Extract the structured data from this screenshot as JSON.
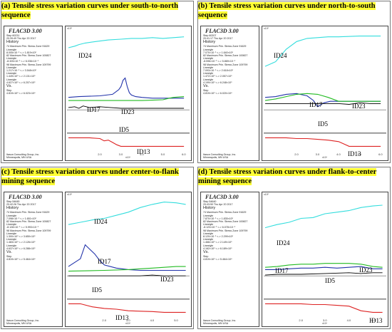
{
  "panels": [
    {
      "caption": "(a) Tensile stress variation curves under south-to-north sequence",
      "software": "FLAC3D 3.00",
      "step": "Step 60231",
      "timestamp": "20:39:49 Thu Apr 20 2017",
      "history_lines": [
        "74 Maximum Prin. Stress Zone 91629",
        "Linestyle",
        "8.005×10⁻¹ <-> 1.819×10⁰",
        "82 Maximum Prin. Stress Zone 100827",
        "Linestyle",
        "-8.325×10⁻¹ <-> 6.036×10⁻¹",
        "98 Maximum Prin. Stress Zone 109799",
        "Linestyle",
        "1.217×10⁻¹ <-> 3.548×10⁰",
        "Linestyle",
        "1.449×10⁰ <-> 2.131×10⁰",
        "Linestyle",
        "4.627×10⁰ <-> 6.207×10⁰"
      ],
      "vs_lines": [
        "Step",
        "4.819×10⁰ <-> 6.023×10⁴"
      ],
      "x_exp": "x10⁴",
      "y_exp": "x10⁰",
      "xticks": [
        "2.0",
        "3.0",
        "4.0",
        "5.0",
        "6.0"
      ]
    },
    {
      "caption": "(b) Tensile stress variation curves under north-to-south sequence",
      "software": "FLAC3D 3.00",
      "step": "Step 60207",
      "timestamp": "20:41:17 Thu Apr 20 2017",
      "history_lines": [
        "74 Maximum Prin. Stress Zone 91629",
        "Linestyle",
        "7.070×10⁻¹ <-> 1.640×10⁰",
        "82 Maximum Prin. Stress Zone 100827",
        "Linestyle",
        "-8.596×10⁻¹ <-> 5.869×10⁻¹",
        "98 Maximum Prin. Stress Zone 109799",
        "Linestyle",
        "7.093×10⁻¹ <-> 2.618×10⁰",
        "Linestyle",
        "1.472×10⁰ <-> 2.057×10⁰",
        "Linestyle",
        "4.199×10⁰ <-> 6.248×10⁰"
      ],
      "vs_lines": [
        "Step",
        "4.819×10⁰ <-> 6.020×10⁴"
      ],
      "x_exp": "x10⁴",
      "y_exp": "x10⁰",
      "xticks": [
        "2.0",
        "3.0",
        "4.0",
        "5.0",
        "6.0"
      ]
    },
    {
      "caption": "(c) Tensile stress variation curves under center-to-flank mining sequence",
      "software": "FLAC3D 3.00",
      "step": "Step 54645",
      "timestamp": "20:42:26 Thu Apr 20 2017",
      "history_lines": [
        "74 Maximum Prin. Stress Zone 91629",
        "Linestyle",
        "7.098×10⁻¹ <-> 1.651×10⁰",
        "82 Maximum Prin. Stress Zone 100827",
        "Linestyle",
        "-8.128×10⁻¹ <-> 5.993×10⁻¹",
        "98 Maximum Prin. Stress Zone 109799",
        "Linestyle",
        "1.300×10⁰ <-> 3.650×10⁰",
        "Linestyle",
        "1.483×10⁰ <-> 2.126×10⁰",
        "Linestyle",
        "4.637×10⁰ <-> 6.288×10⁰"
      ],
      "vs_lines": [
        "Step",
        "4.819×10⁰ <-> 5.464×10⁴"
      ],
      "x_exp": "x10⁴",
      "y_exp": "x10⁰",
      "xticks": [
        "2.0",
        "3.0",
        "4.0",
        "5.0"
      ]
    },
    {
      "caption": "(d) Tensile stress variation curves under flank-to-center mining sequence",
      "software": "FLAC3D 3.00",
      "step": "Step 54640",
      "timestamp": "20:43:50 Thu Apr 20 2017",
      "history_lines": [
        "74 Maximum Prin. Stress Zone 91629",
        "Linestyle",
        "7.870×10⁻¹ <-> 1.835×10⁰",
        "82 Maximum Prin. Stress Zone 100827",
        "Linestyle",
        "-8.123×10⁻¹ <-> 6.078×10⁻¹",
        "98 Maximum Prin. Stress Zone 109799",
        "Linestyle",
        "8.120×10⁻¹ <-> 2.299×10⁰",
        "Linestyle",
        "1.466×10⁰ <-> 2.149×10⁰",
        "Linestyle",
        "4.162×10⁰ <-> 6.189×10⁰"
      ],
      "vs_lines": [
        "Step",
        "4.819×10⁰ <-> 5.464×10⁴"
      ],
      "x_exp": "x10⁴",
      "y_exp": "x10⁰",
      "xticks": [
        "2.0",
        "3.0",
        "4.0",
        "5.0"
      ]
    }
  ],
  "history_label": "History",
  "vs_label": "Vs.",
  "footer": [
    "Itasca Consulting Group, Inc.",
    "Minneapolis, MN  USA"
  ],
  "chart_data": [
    {
      "type": "line",
      "title": "(a) Tensile stress variation curves under south-to-north sequence",
      "series": [
        {
          "name": "ID24",
          "color": "#33dddd",
          "x": [
            0.5,
            0.8,
            1.0,
            1.3,
            1.8,
            2.4,
            3.0,
            3.5,
            4.0,
            4.5,
            5.0,
            5.5,
            6.0
          ],
          "y": [
            5.5,
            5.6,
            5.7,
            5.8,
            5.9,
            6.0,
            6.05,
            6.1,
            6.1,
            6.15,
            6.1,
            6.15,
            6.2
          ]
        },
        {
          "name": "ID17",
          "color": "#2233aa",
          "x": [
            0.5,
            1.0,
            2.0,
            2.6,
            2.9,
            3.0,
            3.1,
            3.2,
            3.3,
            3.4,
            3.5,
            3.7,
            4.0,
            4.5,
            5.0,
            6.0
          ],
          "y": [
            2.3,
            2.35,
            2.4,
            2.5,
            2.8,
            3.0,
            3.4,
            3.55,
            3.0,
            2.6,
            2.45,
            2.35,
            2.3,
            2.25,
            2.25,
            2.25
          ]
        },
        {
          "name": "ID23",
          "color": "#22bb22",
          "x": [
            0.5,
            1.0,
            2.0,
            3.0,
            4.0,
            4.5,
            5.0,
            5.3,
            5.5,
            6.0
          ],
          "y": [
            2.1,
            2.1,
            2.1,
            2.1,
            2.1,
            2.12,
            2.15,
            2.25,
            2.3,
            2.35
          ]
        },
        {
          "name": "ID5",
          "color": "#000000",
          "x": [
            0.5,
            0.8,
            1.0,
            1.2,
            1.5,
            2.0,
            2.5,
            3.0,
            4.0,
            5.0,
            6.0
          ],
          "y": [
            1.65,
            1.7,
            1.6,
            1.75,
            1.65,
            1.7,
            1.65,
            1.6,
            1.6,
            1.6,
            1.6
          ]
        },
        {
          "name": "ID13",
          "color": "#dd2222",
          "x": [
            0.5,
            1.5,
            2.0,
            2.2,
            2.4,
            2.6,
            2.8,
            3.0,
            3.5,
            4.0,
            6.0
          ],
          "y": [
            -0.3,
            -0.3,
            -0.35,
            -0.5,
            -0.45,
            -0.6,
            -0.75,
            -0.85,
            -0.85,
            -0.85,
            -0.85
          ]
        }
      ]
    },
    {
      "type": "line",
      "title": "(b) Tensile stress variation curves under north-to-south sequence",
      "series": [
        {
          "name": "ID24",
          "color": "#33dddd",
          "x": [
            0.5,
            1.0,
            1.5,
            2.0,
            2.5,
            3.0,
            3.5,
            4.0,
            5.0,
            6.0
          ],
          "y": [
            4.3,
            4.6,
            5.4,
            5.9,
            6.1,
            6.15,
            6.2,
            6.2,
            6.25,
            6.25
          ]
        },
        {
          "name": "ID17",
          "color": "#2233aa",
          "x": [
            0.5,
            1.0,
            1.5,
            2.0,
            2.5,
            2.8,
            3.0,
            3.3,
            3.6,
            4.0,
            5.0,
            6.0
          ],
          "y": [
            2.3,
            2.35,
            2.5,
            2.55,
            2.4,
            2.1,
            1.7,
            1.95,
            2.05,
            2.05,
            2.05,
            2.05
          ]
        },
        {
          "name": "ID23",
          "color": "#22bb22",
          "x": [
            0.5,
            1.0,
            1.5,
            2.0,
            2.5,
            3.0,
            3.5,
            4.0,
            5.0,
            6.0
          ],
          "y": [
            2.1,
            2.2,
            2.35,
            2.5,
            2.55,
            2.5,
            2.3,
            2.05,
            2.05,
            2.05
          ]
        },
        {
          "name": "ID5",
          "color": "#000000",
          "x": [
            0.5,
            2.0,
            3.0,
            4.0,
            4.5,
            5.0,
            5.5,
            6.0
          ],
          "y": [
            1.9,
            1.9,
            1.9,
            1.9,
            1.85,
            1.95,
            1.9,
            1.9
          ]
        },
        {
          "name": "ID13",
          "color": "#dd2222",
          "x": [
            0.5,
            1.5,
            2.0,
            2.5,
            3.0,
            3.5,
            4.0,
            4.5,
            5.0,
            6.0
          ],
          "y": [
            -0.3,
            -0.3,
            -0.35,
            -0.35,
            -0.4,
            -0.45,
            -0.55,
            -0.85,
            -0.85,
            -0.85
          ]
        }
      ]
    },
    {
      "type": "line",
      "title": "(c) Tensile stress variation curves under center-to-flank mining sequence",
      "series": [
        {
          "name": "ID24",
          "color": "#33dddd",
          "x": [
            0.5,
            1.0,
            1.5,
            2.0,
            2.5,
            3.0,
            3.5,
            4.0,
            4.5,
            5.0,
            5.4
          ],
          "y": [
            4.8,
            4.95,
            5.1,
            5.2,
            5.4,
            5.6,
            5.9,
            6.1,
            6.25,
            6.2,
            6.1
          ]
        },
        {
          "name": "ID17",
          "color": "#2233aa",
          "x": [
            0.5,
            1.0,
            1.2,
            1.4,
            1.6,
            1.8,
            2.0,
            2.5,
            3.0,
            3.5,
            4.0,
            4.5,
            5.4
          ],
          "y": [
            2.1,
            2.6,
            3.5,
            3.2,
            2.9,
            2.5,
            2.2,
            2.0,
            1.9,
            1.85,
            1.85,
            1.85,
            1.85
          ]
        },
        {
          "name": "ID23",
          "color": "#22bb22",
          "x": [
            0.5,
            2.0,
            3.0,
            3.5,
            4.0,
            4.5,
            5.0,
            5.4
          ],
          "y": [
            1.8,
            1.85,
            1.9,
            1.95,
            2.0,
            2.05,
            2.1,
            2.1
          ]
        },
        {
          "name": "ID5",
          "color": "#000000",
          "x": [
            0.5,
            1.5,
            2.5,
            3.0,
            3.5,
            4.0,
            4.5,
            5.0,
            5.4
          ],
          "y": [
            1.5,
            1.5,
            1.5,
            1.5,
            1.5,
            1.55,
            1.5,
            1.5,
            1.5
          ]
        },
        {
          "name": "ID13",
          "color": "#dd2222",
          "x": [
            0.5,
            1.0,
            1.5,
            2.0,
            2.5,
            3.0,
            3.5,
            4.0,
            4.5,
            5.0,
            5.4
          ],
          "y": [
            -0.3,
            -0.3,
            -0.5,
            -0.6,
            -0.65,
            -0.75,
            -0.78,
            -0.8,
            -0.85,
            -0.85,
            -0.85
          ]
        }
      ]
    },
    {
      "type": "line",
      "title": "(d) Tensile stress variation curves under flank-to-center mining sequence",
      "series": [
        {
          "name": "ID24",
          "color": "#33dddd",
          "x": [
            0.5,
            1.0,
            1.5,
            2.0,
            2.5,
            3.0,
            3.5,
            4.0,
            4.5,
            5.0,
            5.4
          ],
          "y": [
            4.6,
            4.8,
            4.95,
            5.2,
            5.25,
            5.5,
            5.6,
            5.7,
            5.9,
            6.0,
            6.05
          ]
        },
        {
          "name": "ID17",
          "color": "#2233aa",
          "x": [
            0.5,
            1.0,
            1.5,
            2.0,
            2.5,
            3.0,
            3.5,
            4.0,
            4.5,
            5.0,
            5.4
          ],
          "y": [
            1.9,
            1.9,
            1.95,
            2.0,
            2.0,
            2.05,
            2.0,
            2.05,
            2.1,
            1.95,
            1.95
          ]
        },
        {
          "name": "ID23",
          "color": "#22bb22",
          "x": [
            0.5,
            1.0,
            1.5,
            2.0,
            2.5,
            3.0,
            3.5,
            4.0,
            4.5,
            5.0,
            5.4
          ],
          "y": [
            2.05,
            2.1,
            2.2,
            2.25,
            2.25,
            2.3,
            2.3,
            2.3,
            2.25,
            2.1,
            2.05
          ]
        },
        {
          "name": "ID5",
          "color": "#000000",
          "x": [
            0.5,
            1.0,
            2.0,
            3.0,
            4.0,
            4.5,
            5.0,
            5.4
          ],
          "y": [
            1.55,
            1.6,
            1.6,
            1.65,
            1.7,
            1.65,
            1.7,
            1.7
          ]
        },
        {
          "name": "ID13",
          "color": "#dd2222",
          "x": [
            0.5,
            1.5,
            2.0,
            2.5,
            3.0,
            3.5,
            4.0,
            4.5,
            5.0,
            5.4
          ],
          "y": [
            -0.3,
            -0.3,
            -0.3,
            -0.35,
            -0.35,
            -0.4,
            -0.45,
            -0.75,
            -0.85,
            -0.85
          ]
        }
      ]
    }
  ]
}
